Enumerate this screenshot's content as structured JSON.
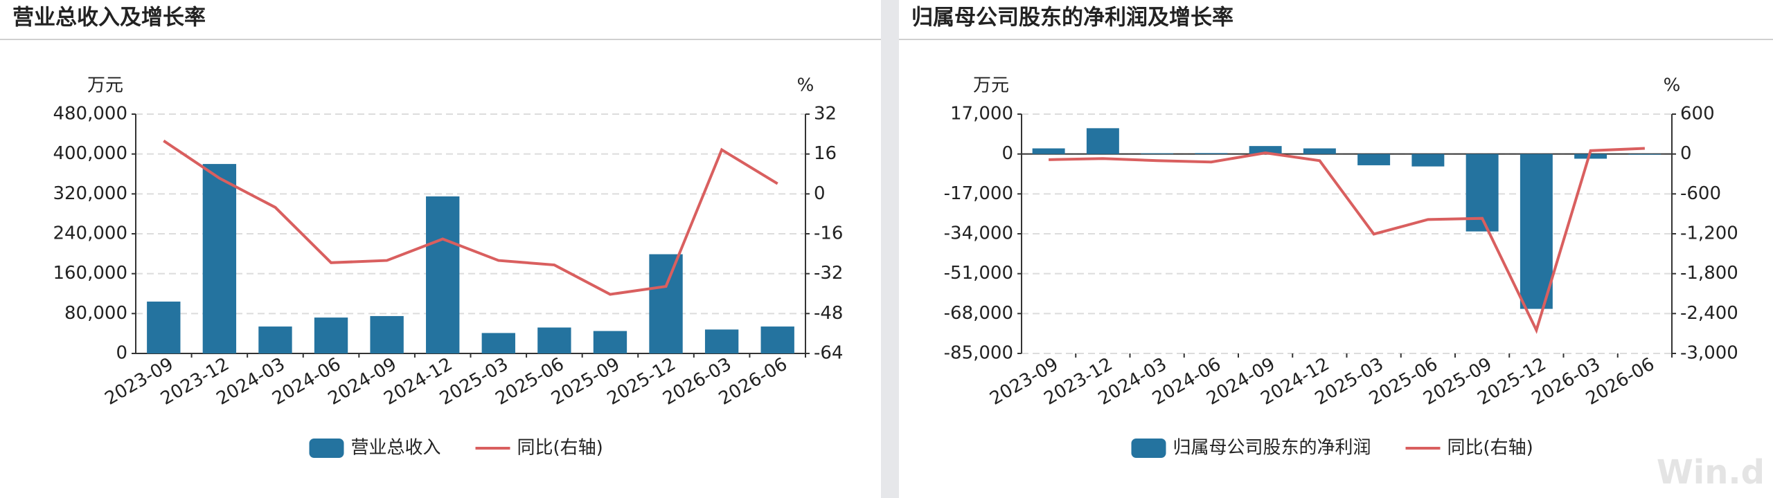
{
  "chart_data": [
    {
      "type": "bar",
      "title": "营业总收入及增长率",
      "y_unit": "万元",
      "y2_unit": "%",
      "categories": [
        "2023-09",
        "2023-12",
        "2024-03",
        "2024-06",
        "2024-09",
        "2024-12",
        "2025-03",
        "2025-06",
        "2025-09",
        "2025-12",
        "2026-03",
        "2026-06"
      ],
      "series": [
        {
          "name": "营业总收入",
          "color": "#24739f",
          "values": [
            104000,
            380000,
            54000,
            72000,
            75000,
            315000,
            41000,
            52000,
            45000,
            199000,
            48000,
            54000
          ]
        },
        {
          "name": "同比(右轴)",
          "type": "line",
          "axis": "y2",
          "color": "#d95f5f",
          "values": [
            21.3,
            6.3,
            -5.4,
            -27.6,
            -26.7,
            -18.1,
            -26.7,
            -28.5,
            -40.3,
            -37.1,
            17.7,
            4.1
          ]
        }
      ],
      "ylim": [
        0,
        480000
      ],
      "yticks": [
        0,
        {
          "value": 80000,
          "label": "80,000"
        },
        {
          "value": 160000,
          "label": "160,000"
        },
        {
          "value": 240000,
          "label": "240,000"
        },
        {
          "value": 320000,
          "label": "320,000"
        },
        {
          "value": 400000,
          "label": "400,000"
        },
        {
          "value": 480000,
          "label": "480,000"
        }
      ],
      "y2lim": [
        -64,
        32
      ],
      "y2ticks": [
        -64,
        -48,
        -32,
        -16,
        0,
        16,
        32
      ],
      "grid": true
    },
    {
      "type": "bar",
      "title": "归属母公司股东的净利润及增长率",
      "y_unit": "万元",
      "y2_unit": "%",
      "categories": [
        "2023-09",
        "2023-12",
        "2024-03",
        "2024-06",
        "2024-09",
        "2024-12",
        "2025-03",
        "2025-06",
        "2025-09",
        "2025-12",
        "2026-03",
        "2026-06"
      ],
      "series": [
        {
          "name": "归属母公司股东的净利润",
          "color": "#24739f",
          "values": [
            2400,
            11000,
            300,
            400,
            3400,
            2400,
            -4800,
            -5300,
            -33000,
            -66000,
            -2000,
            -300
          ]
        },
        {
          "name": "同比(右轴)",
          "type": "line",
          "axis": "y2",
          "color": "#d95f5f",
          "values": [
            -85,
            -68,
            -100,
            -120,
            17,
            -100,
            -1205,
            -985,
            -968,
            -2650,
            50,
            85
          ]
        }
      ],
      "ylim": [
        -85000,
        17000
      ],
      "yticks": [
        {
          "value": -85000,
          "label": "-85,000"
        },
        {
          "value": -68000,
          "label": "-68,000"
        },
        {
          "value": -51000,
          "label": "-51,000"
        },
        {
          "value": -34000,
          "label": "-34,000"
        },
        {
          "value": -17000,
          "label": "-17,000"
        },
        0,
        {
          "value": 17000,
          "label": "17,000"
        }
      ],
      "y2lim": [
        -3000,
        600
      ],
      "y2ticks": [
        {
          "value": -3000,
          "label": "-3,000"
        },
        {
          "value": -2400,
          "label": "-2,400"
        },
        {
          "value": -1800,
          "label": "-1,800"
        },
        {
          "value": -1200,
          "label": "-1,200"
        },
        -600,
        0,
        600
      ],
      "grid": true
    }
  ],
  "watermark": "Win.d"
}
